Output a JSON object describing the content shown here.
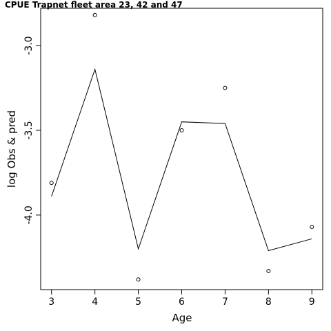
{
  "chart_data": {
    "type": "line",
    "title": "CPUE Trapnet fleet area 23, 42 and 47",
    "xlabel": "Age",
    "ylabel": "log Obs & pred",
    "xlim": [
      2.75,
      9.25
    ],
    "ylim": [
      -4.44,
      -2.78
    ],
    "x_ticks": [
      3,
      4,
      5,
      6,
      7,
      8,
      9
    ],
    "y_ticks": [
      -3.0,
      -3.5,
      -4.0
    ],
    "y_tick_labels": [
      "-3.0",
      "-3.5",
      "-4.0"
    ],
    "grid": false,
    "series": [
      {
        "style": "points",
        "x": [
          3,
          4,
          5,
          6,
          7,
          8,
          9
        ],
        "y": [
          -3.81,
          -2.82,
          -4.38,
          -3.5,
          -3.25,
          -4.33,
          -4.07
        ]
      },
      {
        "style": "line",
        "x": [
          3,
          4,
          5,
          6,
          7,
          8,
          9
        ],
        "y": [
          -3.89,
          -3.14,
          -4.2,
          -3.45,
          -3.46,
          -4.21,
          -4.14
        ]
      }
    ]
  }
}
